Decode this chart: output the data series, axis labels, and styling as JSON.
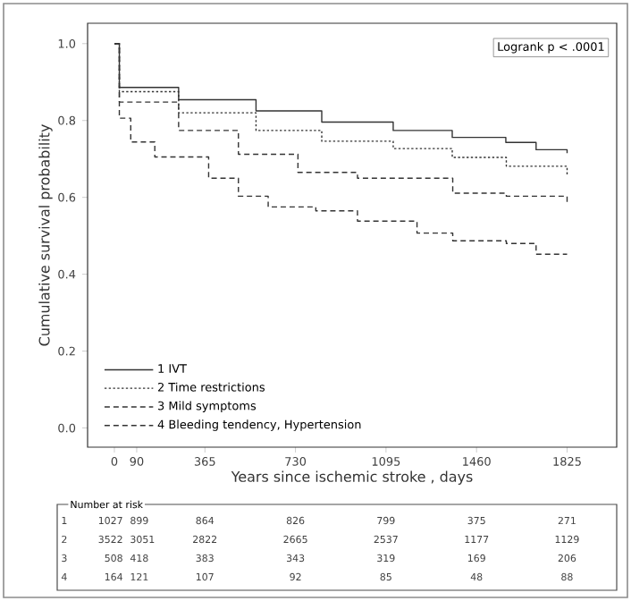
{
  "chart_data": {
    "type": "step",
    "xlabel": "Years since ischemic stroke , days",
    "ylabel": "Cumulative survival probability",
    "xlim": [
      -108,
      2025
    ],
    "ylim": [
      -0.05,
      1.053
    ],
    "xticks": [
      0,
      90,
      365,
      730,
      1095,
      1460,
      1825
    ],
    "yticks": [
      {
        "value": 0,
        "label": "0.0"
      },
      {
        "value": 0.2,
        "label": "0.2"
      },
      {
        "value": 0.4,
        "label": "0.4"
      },
      {
        "value": 0.6,
        "label": "0.6"
      },
      {
        "value": 0.8,
        "label": "0.8"
      },
      {
        "value": 1,
        "label": "1.0"
      }
    ],
    "legend": "bottom left",
    "series": [
      {
        "name": "1 IVT",
        "color": "#333333",
        "line_style": "solid",
        "x": [
          0,
          20,
          259,
          571,
          836,
          1124,
          1362,
          1578,
          1700,
          1825
        ],
        "values": [
          1.0,
          0.886,
          0.854,
          0.825,
          0.796,
          0.774,
          0.756,
          0.743,
          0.724,
          0.715
        ]
      },
      {
        "name": "2 Time restrictions",
        "color": "#333333",
        "line_style": "dotted",
        "x": [
          0,
          20,
          259,
          571,
          836,
          1124,
          1362,
          1580,
          1825
        ],
        "values": [
          1.0,
          0.875,
          0.82,
          0.774,
          0.746,
          0.727,
          0.704,
          0.681,
          0.656
        ]
      },
      {
        "name": "3 Mild symptoms",
        "color": "#333333",
        "line_style": "dashed",
        "x": [
          0,
          20,
          259,
          500,
          740,
          980,
          1364,
          1580,
          1825
        ],
        "values": [
          1.0,
          0.848,
          0.774,
          0.712,
          0.665,
          0.65,
          0.611,
          0.603,
          0.58
        ]
      },
      {
        "name": "4 Bleeding tendency, Hypertension",
        "color": "#333333",
        "line_style": "dashed",
        "x": [
          0,
          20,
          66,
          163,
          380,
          500,
          620,
          812,
          980,
          1220,
          1364,
          1580,
          1700,
          1825
        ],
        "values": [
          1.0,
          0.806,
          0.744,
          0.705,
          0.65,
          0.603,
          0.575,
          0.565,
          0.538,
          0.507,
          0.487,
          0.48,
          0.452,
          0.452
        ]
      }
    ],
    "annotations": [
      "Logrank p < .0001",
      "Number at risk",
      "1",
      "1027",
      "899",
      "864",
      "826",
      "799",
      "375",
      "271",
      "2",
      "3522",
      "3051",
      "2822",
      "2665",
      "2537",
      "1177",
      "1129",
      "3",
      "508",
      "418",
      "383",
      "343",
      "319",
      "169",
      "206",
      "4",
      "164",
      "121",
      "107",
      "92",
      "85",
      "48",
      "88"
    ]
  }
}
